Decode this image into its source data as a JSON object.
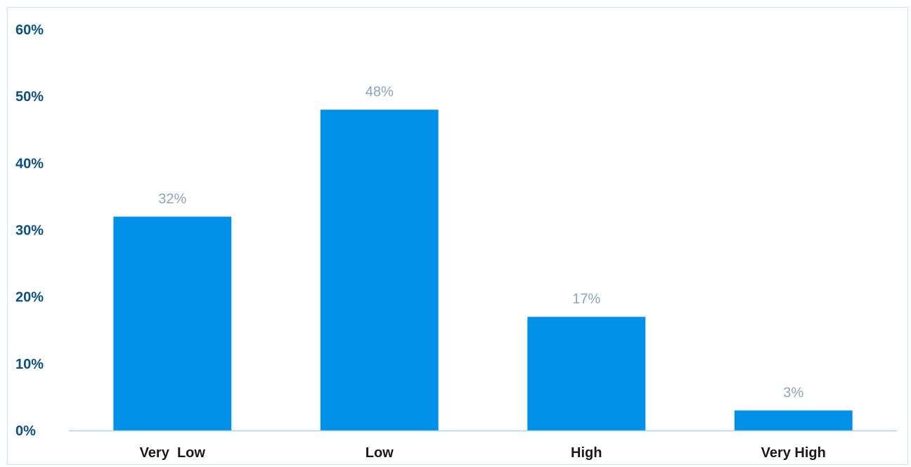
{
  "chart_data": {
    "type": "bar",
    "title": "",
    "xlabel": "",
    "ylabel": "",
    "categories": [
      "Very  Low",
      "Low",
      "High",
      "Very High"
    ],
    "values": [
      32,
      48,
      17,
      3
    ],
    "data_labels": [
      "32%",
      "48%",
      "17%",
      "3%"
    ],
    "ylim": [
      0,
      60
    ],
    "yticks": [
      0,
      10,
      20,
      30,
      40,
      50,
      60
    ],
    "ytick_labels": [
      "0%",
      "10%",
      "20%",
      "30%",
      "40%",
      "50%",
      "60%"
    ],
    "grid": false,
    "legend": "none",
    "colors": {
      "bar": "#0090e8",
      "axis_text": "#0d4f80",
      "category_text": "#1a1a1a",
      "data_label": "#8aa4bd",
      "axis_line": "#a8d2ef",
      "frame": "#cfe3f3"
    }
  }
}
